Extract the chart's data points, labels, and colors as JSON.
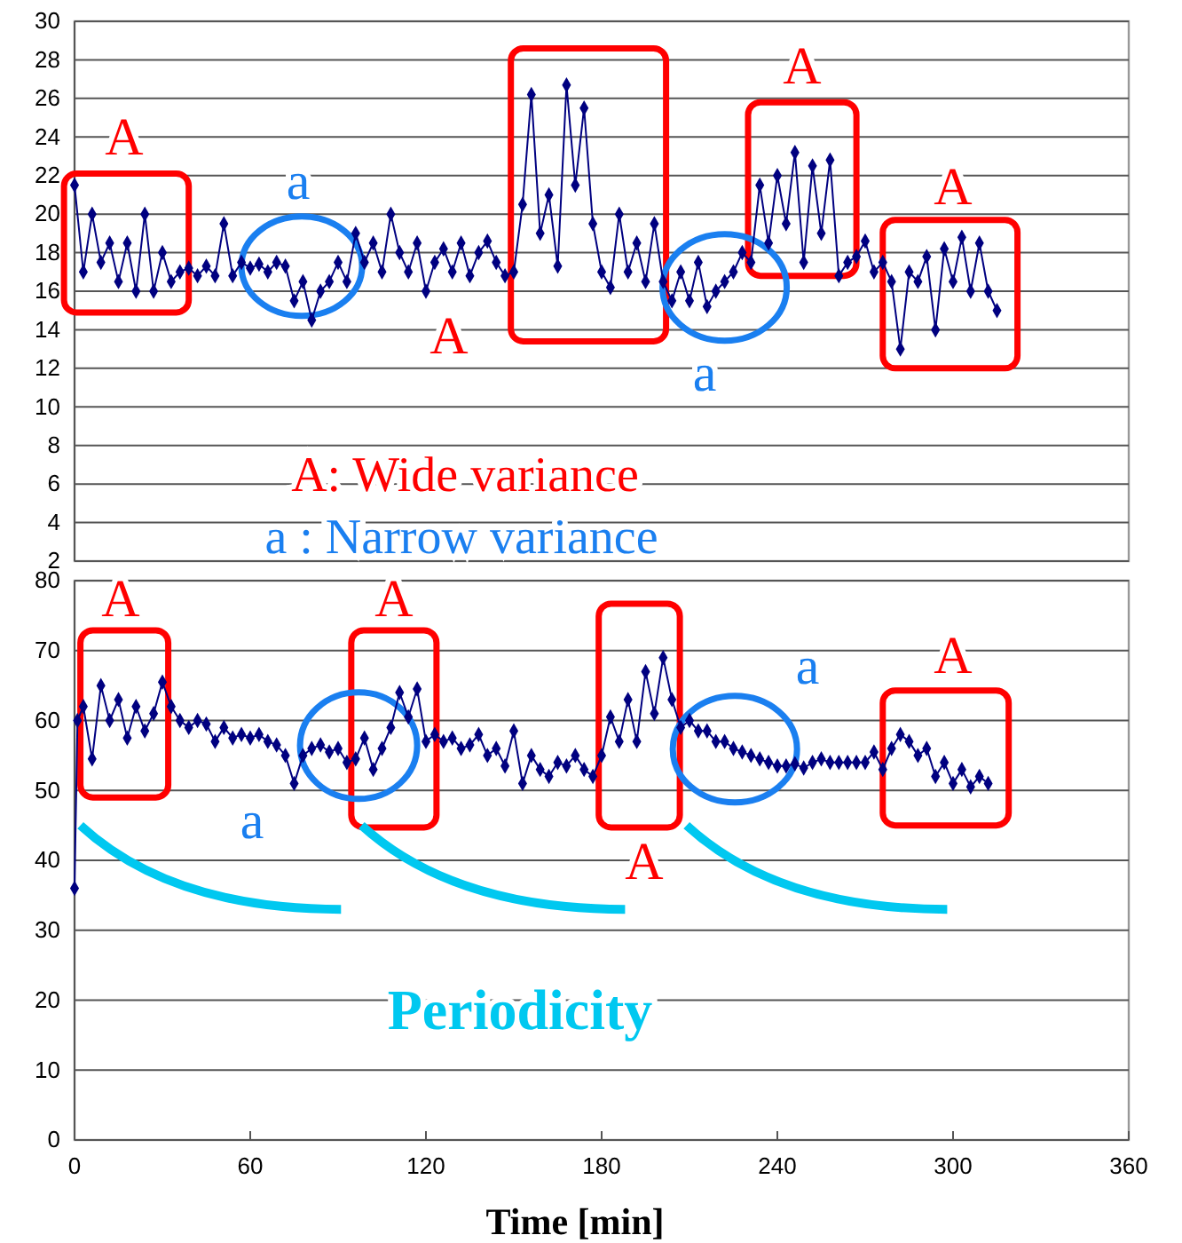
{
  "chart_data": [
    {
      "type": "line",
      "xlim": [
        0,
        360
      ],
      "ylim": [
        2,
        30
      ],
      "yticks": [
        2,
        4,
        6,
        8,
        10,
        12,
        14,
        16,
        18,
        20,
        22,
        24,
        26,
        28,
        30
      ],
      "tick_labels": "y",
      "grid": "y",
      "marker": "diamond",
      "line_style": "solid",
      "x": [
        0,
        3,
        6,
        9,
        12,
        15,
        18,
        21,
        24,
        27,
        30,
        33,
        36,
        39,
        42,
        45,
        48,
        51,
        54,
        57,
        60,
        63,
        66,
        69,
        72,
        75,
        78,
        81,
        84,
        87,
        90,
        93,
        96,
        99,
        102,
        105,
        108,
        111,
        114,
        117,
        120,
        123,
        126,
        129,
        132,
        135,
        138,
        141,
        144,
        147,
        150,
        153,
        156,
        159,
        162,
        165,
        168,
        171,
        174,
        177,
        180,
        183,
        186,
        189,
        192,
        195,
        198,
        201,
        204,
        207,
        210,
        213,
        216,
        219,
        222,
        225,
        228,
        231,
        234,
        237,
        240,
        243,
        246,
        249,
        252,
        255,
        258,
        261,
        264,
        267,
        270,
        273,
        276,
        279,
        282,
        285,
        288,
        291,
        294,
        297,
        300,
        303,
        306,
        309,
        312,
        315
      ],
      "series": [
        {
          "color": "#000080",
          "values": [
            21.5,
            17,
            20,
            17.5,
            18.5,
            16.5,
            18.5,
            16,
            20,
            16,
            18,
            16.5,
            17,
            17.2,
            16.8,
            17.3,
            16.8,
            19.5,
            16.8,
            17.5,
            17.2,
            17.4,
            17,
            17.5,
            17.3,
            15.5,
            16.5,
            14.5,
            16,
            16.5,
            17.5,
            16.5,
            19,
            17.5,
            18.5,
            17,
            20,
            18,
            17,
            18.5,
            16,
            17.5,
            18.2,
            17,
            18.5,
            16.8,
            18,
            18.6,
            17.5,
            16.8,
            17,
            20.5,
            26.2,
            19,
            21,
            17.3,
            26.7,
            21.5,
            25.5,
            19.5,
            17,
            16.2,
            20,
            17,
            18.5,
            16.5,
            19.5,
            16.5,
            15.5,
            17,
            15.5,
            17.5,
            15.2,
            16,
            16.5,
            17,
            18,
            17.5,
            21.5,
            18.5,
            22,
            19.5,
            23.2,
            17.5,
            22.5,
            19,
            22.8,
            16.8,
            17.5,
            17.8,
            18.6,
            17,
            17.5,
            16.5,
            13,
            17,
            16.5,
            17.8,
            14,
            18.2,
            16.5,
            18.8,
            16,
            18.5,
            16,
            15
          ]
        }
      ],
      "annotations": [
        "A",
        "a",
        "A",
        "A",
        "a",
        "A",
        "A: Wide variance",
        "a : Narrow variance"
      ]
    },
    {
      "type": "line",
      "xlim": [
        0,
        360
      ],
      "xticks": [
        0,
        60,
        120,
        180,
        240,
        300,
        360
      ],
      "ylim": [
        0,
        80
      ],
      "yticks": [
        0,
        10,
        20,
        30,
        40,
        50,
        60,
        70,
        80
      ],
      "grid": "y",
      "marker": "diamond",
      "line_style": "solid",
      "xlabel": "Time [min]",
      "x": [
        0,
        1,
        3,
        6,
        9,
        12,
        15,
        18,
        21,
        24,
        27,
        30,
        33,
        36,
        39,
        42,
        45,
        48,
        51,
        54,
        57,
        60,
        63,
        66,
        69,
        72,
        75,
        78,
        81,
        84,
        87,
        90,
        93,
        96,
        99,
        102,
        105,
        108,
        111,
        114,
        117,
        120,
        123,
        126,
        129,
        132,
        135,
        138,
        141,
        144,
        147,
        150,
        153,
        156,
        159,
        162,
        165,
        168,
        171,
        174,
        177,
        180,
        183,
        186,
        189,
        192,
        195,
        198,
        201,
        204,
        207,
        210,
        213,
        216,
        219,
        222,
        225,
        228,
        231,
        234,
        237,
        240,
        243,
        246,
        249,
        252,
        255,
        258,
        261,
        264,
        267,
        270,
        273,
        276,
        279,
        282,
        285,
        288,
        291,
        294,
        297,
        300,
        303,
        306,
        309,
        312
      ],
      "series": [
        {
          "color": "#000080",
          "values": [
            36,
            60,
            62,
            54.5,
            65,
            60,
            63,
            57.5,
            62,
            58.5,
            61,
            65.5,
            62,
            60,
            59,
            60,
            59.5,
            57,
            59,
            57.5,
            58,
            57.5,
            58,
            57,
            56.5,
            55,
            51,
            55,
            56,
            56.5,
            55.5,
            56,
            54,
            54.5,
            57.5,
            53,
            56,
            59,
            64,
            60.5,
            64.5,
            57,
            58,
            57,
            57.5,
            56,
            56.5,
            58,
            55,
            56,
            53.5,
            58.5,
            51,
            55,
            53,
            52,
            54,
            53.5,
            55,
            53,
            52,
            55,
            60.5,
            57,
            63,
            57,
            67,
            61,
            69,
            63,
            59,
            60,
            58.5,
            58.5,
            57,
            57,
            56,
            55.5,
            55,
            54.5,
            54,
            53.5,
            53.5,
            53.8,
            53.2,
            54,
            54.5,
            54,
            54,
            54,
            54,
            54,
            55.5,
            53,
            56,
            58,
            57,
            55,
            56,
            52,
            54,
            51,
            53,
            50.5,
            52,
            51
          ]
        }
      ],
      "annotations": [
        "A",
        "A",
        "a",
        "A",
        "a",
        "A",
        "Periodicity"
      ]
    }
  ]
}
